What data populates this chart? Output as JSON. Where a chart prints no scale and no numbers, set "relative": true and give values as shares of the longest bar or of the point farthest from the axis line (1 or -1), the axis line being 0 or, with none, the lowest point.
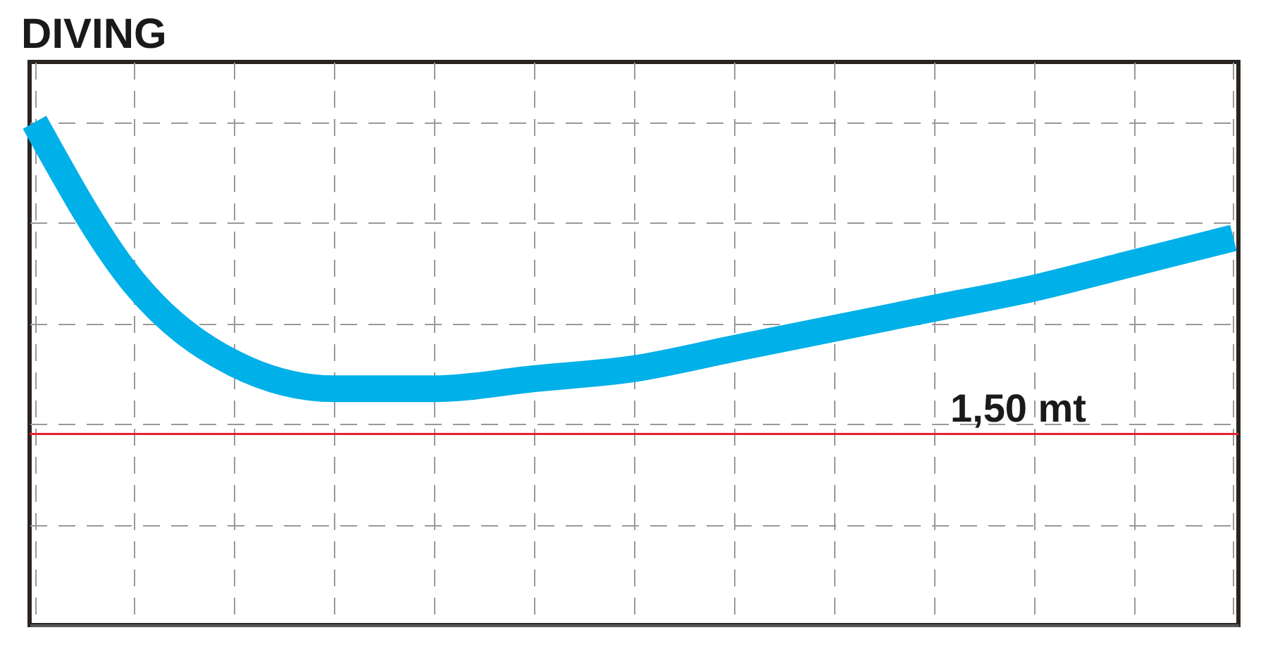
{
  "chart_data": {
    "type": "line",
    "title": "DIVING",
    "relative": true,
    "categories": [
      null,
      null,
      null,
      null,
      null,
      null,
      null,
      null,
      null,
      null,
      null,
      null,
      null
    ],
    "series": [
      {
        "color": "#00b0e8",
        "values": [
          1,
          0.68,
          0.52,
          0.47,
          0.47,
          0.49,
          0.51,
          0.55,
          0.59,
          0.63,
          0.67,
          0.72,
          0.77
        ]
      }
    ],
    "ref_lines": [
      {
        "axis": "y",
        "value": 0.38,
        "label": "1,50 mt",
        "color": "#e8202a"
      }
    ],
    "grid": true,
    "legend": false,
    "marker": "none",
    "line_style": "solid"
  }
}
